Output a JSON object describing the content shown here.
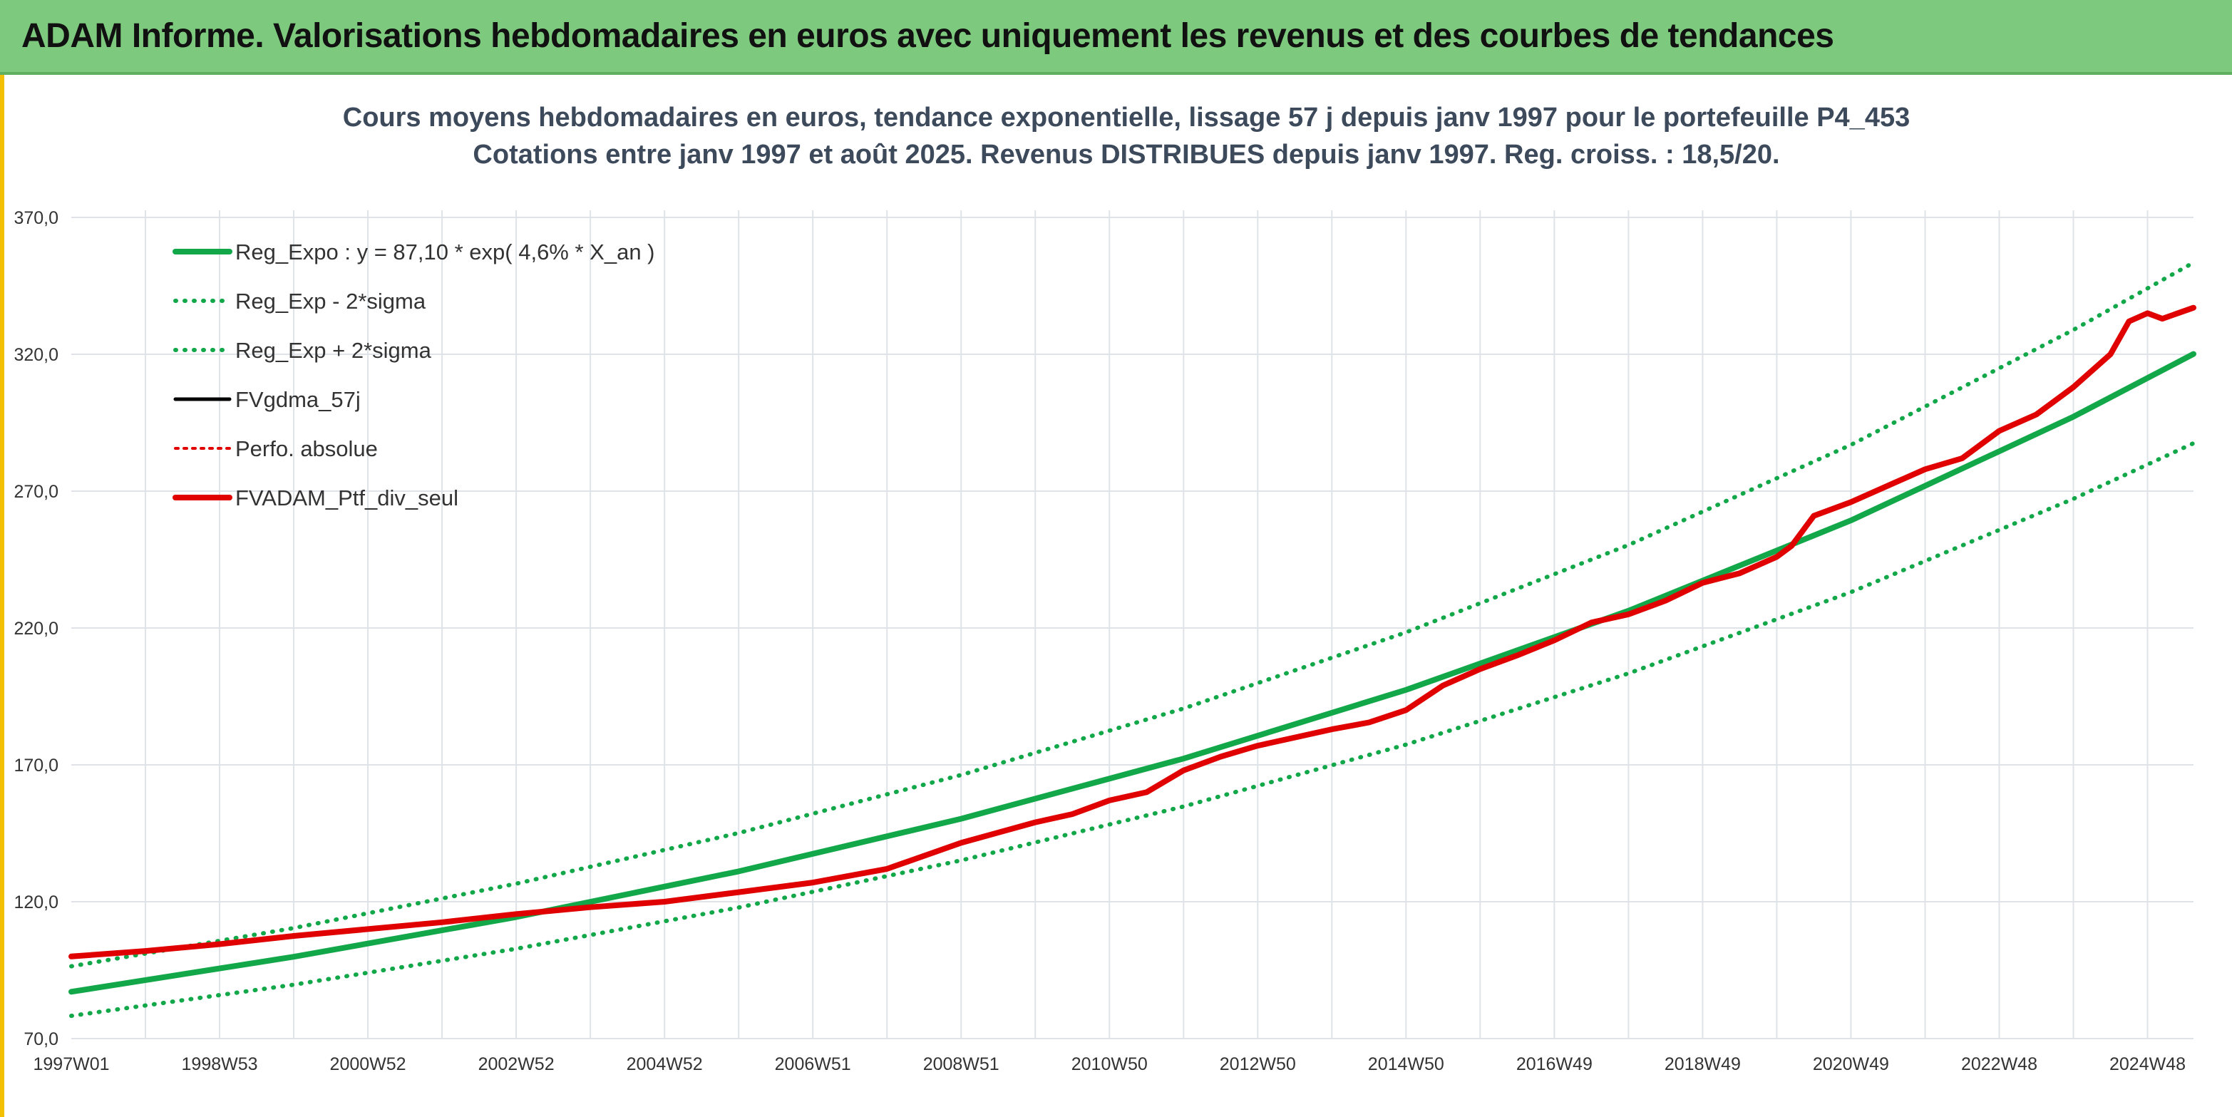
{
  "banner": {
    "title": "ADAM Informe. Valorisations hebdomadaires en euros avec uniquement les revenus et des courbes de tendances"
  },
  "colors": {
    "banner_bg": "#7dc97d",
    "frame_accent": "#f2c000",
    "trend_green": "#12a84a",
    "series_black": "#000000",
    "series_red": "#e00000"
  },
  "chart_data": {
    "type": "line",
    "title_lines": [
      "Cours moyens hebdomadaires en euros, tendance exponentielle, lissage 57 j depuis janv 1997 pour le portefeuille P4_453",
      "Cotations entre janv 1997 et août 2025. Revenus DISTRIBUES depuis janv 1997. Reg. croiss. : 18,5/20."
    ],
    "xlabel": "",
    "ylabel": "",
    "xlim": [
      1997.0,
      2025.62
    ],
    "ylim": [
      70,
      370
    ],
    "y_ticks": [
      "70,0",
      "120,0",
      "170,0",
      "220,0",
      "270,0",
      "320,0",
      "370,0"
    ],
    "x_ticks": [
      {
        "label": "1997W01",
        "x": 1997.0
      },
      {
        "label": "1998W53",
        "x": 1999.0
      },
      {
        "label": "2000W52",
        "x": 2001.0
      },
      {
        "label": "2002W52",
        "x": 2003.0
      },
      {
        "label": "2004W52",
        "x": 2005.0
      },
      {
        "label": "2006W51",
        "x": 2007.0
      },
      {
        "label": "2008W51",
        "x": 2009.0
      },
      {
        "label": "2010W50",
        "x": 2011.0
      },
      {
        "label": "2012W50",
        "x": 2013.0
      },
      {
        "label": "2014W50",
        "x": 2015.0
      },
      {
        "label": "2016W49",
        "x": 2017.0
      },
      {
        "label": "2018W49",
        "x": 2019.0
      },
      {
        "label": "2020W49",
        "x": 2021.0
      },
      {
        "label": "2022W48",
        "x": 2023.0
      },
      {
        "label": "2024W48",
        "x": 2025.0
      }
    ],
    "grid": true,
    "legend_position": "top-left",
    "series": [
      {
        "name": "Reg_Expo : y = 87,10 * exp( 4,6% *  X_an )",
        "style": "solid",
        "color": "#12a84a",
        "x": [
          1997.0,
          2000.0,
          2003.0,
          2006.0,
          2009.0,
          2012.0,
          2015.0,
          2018.0,
          2021.0,
          2024.0,
          2025.62
        ],
        "y": [
          87.1,
          99.9,
          114.4,
          131.1,
          150.3,
          172.3,
          197.4,
          226.3,
          259.3,
          297.2,
          320.1
        ]
      },
      {
        "name": "Reg_Exp - 2*sigma",
        "style": "dotted",
        "color": "#12a84a",
        "x": [
          1997.0,
          2000.0,
          2003.0,
          2006.0,
          2009.0,
          2012.0,
          2015.0,
          2018.0,
          2021.0,
          2024.0,
          2025.62
        ],
        "y": [
          78.3,
          89.7,
          102.8,
          117.9,
          135.1,
          154.8,
          177.4,
          203.4,
          233.1,
          267.2,
          287.5
        ]
      },
      {
        "name": "Reg_Exp + 2*sigma",
        "style": "dotted",
        "color": "#12a84a",
        "x": [
          1997.0,
          2000.0,
          2003.0,
          2006.0,
          2009.0,
          2012.0,
          2015.0,
          2018.0,
          2021.0,
          2024.0,
          2025.62
        ],
        "y": [
          96.4,
          110.4,
          126.6,
          145.1,
          166.3,
          190.6,
          218.4,
          250.3,
          286.9,
          328.9,
          353.5
        ]
      },
      {
        "name": "FVgdma_57j",
        "style": "solid-thin",
        "color": "#000000",
        "x": [
          1997.0,
          1998.0,
          1999.0,
          2000.0,
          2001.0,
          2002.0,
          2003.0,
          2004.0,
          2005.0,
          2006.0,
          2007.0,
          2008.0,
          2009.0,
          2010.0,
          2010.5,
          2011.0,
          2011.5,
          2012.0,
          2012.5,
          2013.0,
          2013.5,
          2014.0,
          2014.5,
          2015.0,
          2015.5,
          2016.0,
          2016.5,
          2017.0,
          2017.5,
          2018.0,
          2018.5,
          2019.0,
          2019.5,
          2020.0,
          2020.2,
          2020.5,
          2021.0,
          2021.5,
          2022.0,
          2022.5,
          2023.0,
          2023.5,
          2024.0,
          2024.5,
          2024.75,
          2025.0,
          2025.2,
          2025.62
        ],
        "y": [
          100.0,
          102.0,
          104.5,
          107.5,
          110.0,
          112.5,
          115.5,
          118.0,
          120.0,
          123.5,
          127.0,
          132.0,
          141.5,
          149.0,
          152.0,
          157.0,
          160.0,
          168.0,
          173.0,
          177.0,
          180.0,
          183.0,
          185.5,
          190.0,
          199.0,
          205.0,
          210.0,
          215.5,
          222.0,
          225.0,
          230.0,
          236.5,
          240.0,
          246.0,
          250.0,
          261.0,
          266.0,
          272.0,
          278.0,
          282.0,
          292.0,
          298.0,
          308.0,
          320.0,
          332.0,
          335.0,
          333.0,
          337.0
        ]
      },
      {
        "name": "Perfo. absolue",
        "style": "dotted",
        "color": "#e00000",
        "x": [
          1997.0,
          1998.0,
          1999.0,
          2000.0,
          2001.0,
          2002.0,
          2003.0,
          2004.0,
          2005.0,
          2006.0,
          2007.0,
          2008.0,
          2009.0,
          2010.0,
          2010.5,
          2011.0,
          2011.5,
          2012.0,
          2012.5,
          2013.0,
          2013.5,
          2014.0,
          2014.5,
          2015.0,
          2015.5,
          2016.0,
          2016.5,
          2017.0,
          2017.5,
          2018.0,
          2018.5,
          2019.0,
          2019.5,
          2020.0,
          2020.2,
          2020.5,
          2021.0,
          2021.5,
          2022.0,
          2022.5,
          2023.0,
          2023.5,
          2024.0,
          2024.5,
          2024.75,
          2025.0,
          2025.2,
          2025.62
        ],
        "y": [
          100.0,
          102.0,
          104.5,
          107.5,
          110.0,
          112.5,
          115.5,
          118.0,
          120.0,
          123.5,
          127.0,
          132.0,
          141.5,
          149.0,
          152.0,
          157.0,
          160.0,
          168.0,
          173.0,
          177.0,
          180.0,
          183.0,
          185.5,
          190.0,
          199.0,
          205.0,
          210.0,
          215.5,
          222.0,
          225.0,
          230.0,
          236.5,
          240.0,
          246.0,
          250.0,
          261.0,
          266.0,
          272.0,
          278.0,
          282.0,
          292.0,
          298.0,
          308.0,
          320.0,
          332.0,
          335.0,
          333.0,
          337.0
        ]
      },
      {
        "name": "FVADAM_Ptf_div_seul",
        "style": "solid-thick",
        "color": "#e00000",
        "x": [
          1997.0,
          1998.0,
          1999.0,
          2000.0,
          2001.0,
          2002.0,
          2003.0,
          2004.0,
          2005.0,
          2006.0,
          2007.0,
          2008.0,
          2009.0,
          2010.0,
          2010.5,
          2011.0,
          2011.5,
          2012.0,
          2012.5,
          2013.0,
          2013.5,
          2014.0,
          2014.5,
          2015.0,
          2015.5,
          2016.0,
          2016.5,
          2017.0,
          2017.5,
          2018.0,
          2018.5,
          2019.0,
          2019.5,
          2020.0,
          2020.2,
          2020.5,
          2021.0,
          2021.5,
          2022.0,
          2022.5,
          2023.0,
          2023.5,
          2024.0,
          2024.5,
          2024.75,
          2025.0,
          2025.2,
          2025.62
        ],
        "y": [
          100.0,
          102.0,
          104.5,
          107.5,
          110.0,
          112.5,
          115.5,
          118.0,
          120.0,
          123.5,
          127.0,
          132.0,
          141.5,
          149.0,
          152.0,
          157.0,
          160.0,
          168.0,
          173.0,
          177.0,
          180.0,
          183.0,
          185.5,
          190.0,
          199.0,
          205.0,
          210.0,
          215.5,
          222.0,
          225.0,
          230.0,
          236.5,
          240.0,
          246.0,
          250.0,
          261.0,
          266.0,
          272.0,
          278.0,
          282.0,
          292.0,
          298.0,
          308.0,
          320.0,
          332.0,
          335.0,
          333.0,
          337.0
        ]
      }
    ]
  }
}
